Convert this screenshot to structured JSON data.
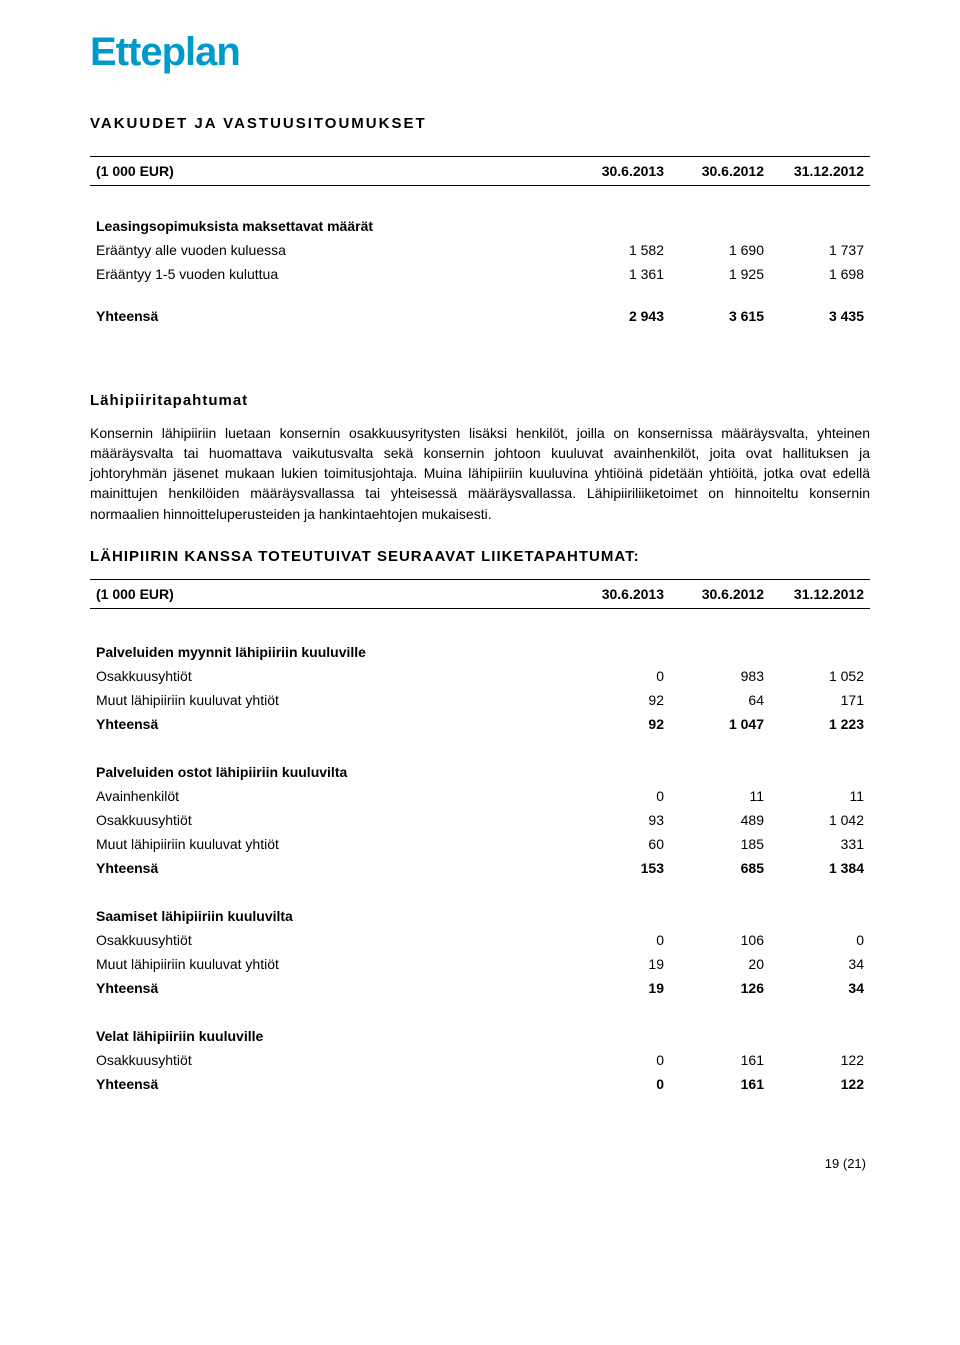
{
  "logo": "Etteplan",
  "section1_title": "VAKUUDET JA VASTUUSITOUMUKSET",
  "header": {
    "col0": "(1 000 EUR)",
    "col1": "30.6.2013",
    "col2": "30.6.2012",
    "col3": "31.12.2012"
  },
  "leasing": {
    "title": "Leasingsopimuksista maksettavat määrät",
    "rows": [
      {
        "label": "Erääntyy alle vuoden kuluessa",
        "c1": "1 582",
        "c2": "1 690",
        "c3": "1 737"
      },
      {
        "label": "Erääntyy 1-5 vuoden kuluttua",
        "c1": "1 361",
        "c2": "1 925",
        "c3": "1 698"
      }
    ],
    "total": {
      "label": "Yhteensä",
      "c1": "2 943",
      "c2": "3 615",
      "c3": "3 435"
    }
  },
  "section2_title": "Lähipiiritapahtumat",
  "body_para": "Konsernin lähipiiriin luetaan konsernin osakkuusyritysten lisäksi henkilöt, joilla on konsernissa määräysvalta, yhteinen määräysvalta tai huomattava vaikutusvalta sekä konsernin johtoon kuuluvat avainhenkilöt, joita ovat hallituksen ja johtoryhmän jäsenet mukaan lukien toimitusjohtaja. Muina lähipiiriin kuuluvina yhtiöinä pidetään yhtiöitä, jotka ovat edellä mainittujen henkilöiden määräysvallassa tai yhteisessä määräysvallassa. Lähipiiriliiketoimet on hinnoiteltu konsernin normaalien hinnoitteluperusteiden ja hankintaehtojen mukaisesti.",
  "section3_title": "LÄHIPIIRIN KANSSA TOTEUTUIVAT SEURAAVAT LIIKETAPAHTUMAT:",
  "groups": [
    {
      "title": "Palveluiden myynnit lähipiiriin kuuluville",
      "rows": [
        {
          "label": "Osakkuusyhtiöt",
          "c1": "0",
          "c2": "983",
          "c3": "1 052"
        },
        {
          "label": "Muut lähipiiriin kuuluvat yhtiöt",
          "c1": "92",
          "c2": "64",
          "c3": "171"
        }
      ],
      "total": {
        "label": "Yhteensä",
        "c1": "92",
        "c2": "1 047",
        "c3": "1 223"
      }
    },
    {
      "title": "Palveluiden ostot lähipiiriin kuuluvilta",
      "rows": [
        {
          "label": "Avainhenkilöt",
          "c1": "0",
          "c2": "11",
          "c3": "11"
        },
        {
          "label": "Osakkuusyhtiöt",
          "c1": "93",
          "c2": "489",
          "c3": "1 042"
        },
        {
          "label": "Muut lähipiiriin kuuluvat yhtiöt",
          "c1": "60",
          "c2": "185",
          "c3": "331"
        }
      ],
      "total": {
        "label": "Yhteensä",
        "c1": "153",
        "c2": "685",
        "c3": "1 384"
      }
    },
    {
      "title": "Saamiset lähipiiriin kuuluvilta",
      "rows": [
        {
          "label": "Osakkuusyhtiöt",
          "c1": "0",
          "c2": "106",
          "c3": "0"
        },
        {
          "label": "Muut lähipiiriin kuuluvat yhtiöt",
          "c1": "19",
          "c2": "20",
          "c3": "34"
        }
      ],
      "total": {
        "label": "Yhteensä",
        "c1": "19",
        "c2": "126",
        "c3": "34"
      }
    },
    {
      "title": "Velat lähipiiriin kuuluville",
      "rows": [
        {
          "label": "Osakkuusyhtiöt",
          "c1": "0",
          "c2": "161",
          "c3": "122"
        }
      ],
      "total": {
        "label": "Yhteensä",
        "c1": "0",
        "c2": "161",
        "c3": "122"
      }
    }
  ],
  "page_num": "19 (21)"
}
